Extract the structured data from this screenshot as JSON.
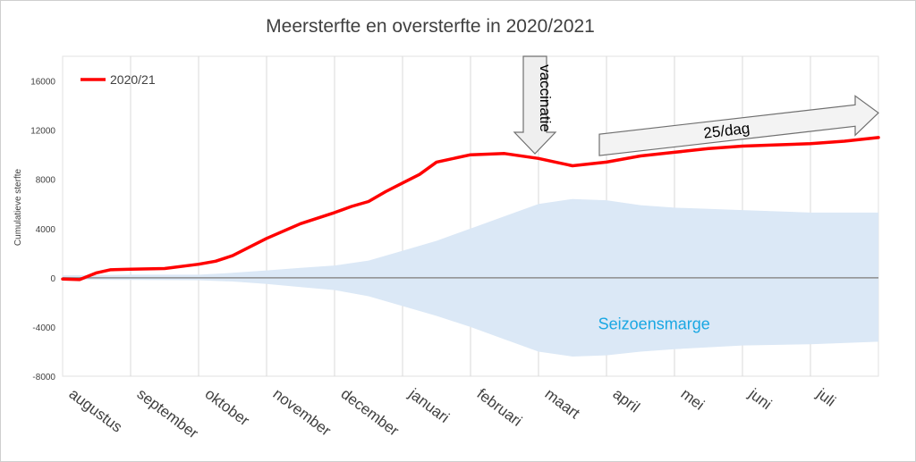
{
  "chart_data": {
    "type": "line",
    "title": "Meersterfte en oversterfte in 2020/2021",
    "ylabel": "Cumulatieve sterfte",
    "xlabel": "",
    "ylim": [
      -8000,
      18000
    ],
    "yticks": [
      -8000,
      -4000,
      0,
      4000,
      8000,
      12000,
      16000
    ],
    "ytick_labels": [
      "-8000",
      "-4000",
      "0",
      "4000",
      "8000",
      "12000",
      "16000"
    ],
    "x_range": [
      0,
      12
    ],
    "months": [
      "augustus",
      "september",
      "oktober",
      "november",
      "december",
      "januari",
      "februari",
      "maart",
      "april",
      "mei",
      "juni",
      "juli"
    ],
    "grid": true,
    "legend": "top-left",
    "series": [
      {
        "name": "2020/21",
        "color": "#ff0000",
        "x": [
          0,
          0.25,
          0.5,
          0.7,
          1.0,
          1.5,
          2.0,
          2.25,
          2.5,
          3.0,
          3.5,
          4.0,
          4.25,
          4.5,
          4.75,
          5.0,
          5.25,
          5.5,
          6.0,
          6.5,
          7.0,
          7.25,
          7.5,
          8.0,
          8.5,
          9.0,
          9.5,
          10.0,
          10.5,
          11.0,
          11.5,
          12.0
        ],
        "values": [
          -100,
          -150,
          400,
          650,
          700,
          750,
          1100,
          1350,
          1800,
          3200,
          4400,
          5300,
          5800,
          6200,
          7000,
          7700,
          8400,
          9400,
          10000,
          10100,
          9700,
          9400,
          9100,
          9400,
          9900,
          10200,
          10500,
          10700,
          10800,
          10900,
          11100,
          11400
        ]
      }
    ],
    "seasonal_margin": {
      "name": "Seizoensmarge",
      "color": "#dbe8f6",
      "x": [
        0,
        1,
        2,
        2.5,
        3,
        3.5,
        4,
        4.5,
        5,
        5.5,
        6,
        6.5,
        7,
        7.5,
        8,
        8.5,
        9,
        10,
        11,
        12
      ],
      "upper": [
        200,
        250,
        250,
        400,
        600,
        800,
        1000,
        1400,
        2200,
        3000,
        4000,
        5000,
        6000,
        6400,
        6300,
        5900,
        5700,
        5500,
        5300,
        5300
      ],
      "lower": [
        -150,
        -180,
        -200,
        -300,
        -500,
        -750,
        -1000,
        -1500,
        -2300,
        -3100,
        -4000,
        -5000,
        -6000,
        -6400,
        -6300,
        -6000,
        -5800,
        -5500,
        -5400,
        -5200
      ]
    },
    "annotations": {
      "vaccination": {
        "label": "vaccinatie",
        "x": 7.0
      },
      "trend": {
        "label": "25/dag",
        "x_start": 8.0,
        "x_end": 12.0,
        "value_start": 10800,
        "value_end": 13400
      },
      "margin_label": {
        "text": "Seizoensmarge",
        "x": 8.7,
        "value": -4200
      }
    }
  }
}
